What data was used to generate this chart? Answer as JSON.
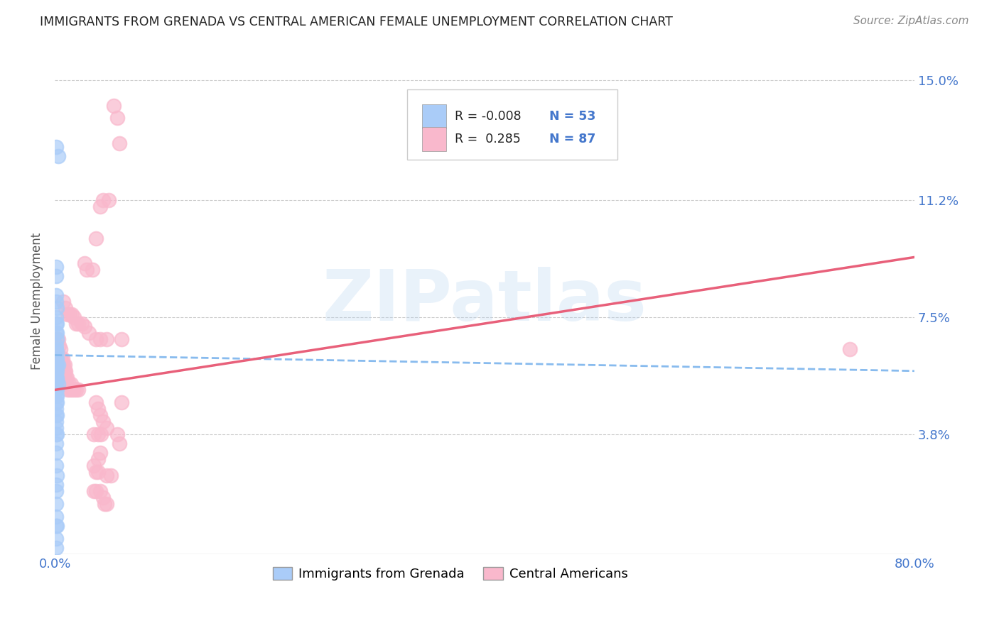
{
  "title": "IMMIGRANTS FROM GRENADA VS CENTRAL AMERICAN FEMALE UNEMPLOYMENT CORRELATION CHART",
  "source": "Source: ZipAtlas.com",
  "ylabel": "Female Unemployment",
  "yticks": [
    3.8,
    7.5,
    11.2,
    15.0
  ],
  "xlim": [
    0.0,
    0.8
  ],
  "ylim": [
    0.0,
    0.16
  ],
  "watermark": "ZIPatlas",
  "legend_blue_r": "-0.008",
  "legend_blue_n": "53",
  "legend_pink_r": "0.285",
  "legend_pink_n": "87",
  "blue_color": "#aaccf8",
  "pink_color": "#f9b8cc",
  "blue_line_color": "#88bbee",
  "pink_line_color": "#e8607a",
  "title_color": "#222222",
  "axis_label_color": "#4477cc",
  "background_color": "#ffffff",
  "blue_trend": [
    0.063,
    0.058
  ],
  "pink_trend": [
    0.052,
    0.094
  ],
  "blue_points": [
    [
      0.001,
      0.129
    ],
    [
      0.003,
      0.126
    ],
    [
      0.001,
      0.091
    ],
    [
      0.001,
      0.088
    ],
    [
      0.001,
      0.082
    ],
    [
      0.001,
      0.08
    ],
    [
      0.002,
      0.078
    ],
    [
      0.001,
      0.075
    ],
    [
      0.001,
      0.073
    ],
    [
      0.002,
      0.073
    ],
    [
      0.001,
      0.07
    ],
    [
      0.002,
      0.07
    ],
    [
      0.002,
      0.068
    ],
    [
      0.001,
      0.066
    ],
    [
      0.001,
      0.065
    ],
    [
      0.002,
      0.064
    ],
    [
      0.001,
      0.062
    ],
    [
      0.002,
      0.062
    ],
    [
      0.001,
      0.06
    ],
    [
      0.002,
      0.06
    ],
    [
      0.003,
      0.06
    ],
    [
      0.001,
      0.058
    ],
    [
      0.002,
      0.058
    ],
    [
      0.001,
      0.056
    ],
    [
      0.002,
      0.056
    ],
    [
      0.001,
      0.055
    ],
    [
      0.002,
      0.055
    ],
    [
      0.003,
      0.054
    ],
    [
      0.001,
      0.052
    ],
    [
      0.002,
      0.052
    ],
    [
      0.001,
      0.05
    ],
    [
      0.002,
      0.05
    ],
    [
      0.001,
      0.048
    ],
    [
      0.002,
      0.048
    ],
    [
      0.001,
      0.046
    ],
    [
      0.001,
      0.044
    ],
    [
      0.002,
      0.044
    ],
    [
      0.001,
      0.042
    ],
    [
      0.001,
      0.04
    ],
    [
      0.001,
      0.038
    ],
    [
      0.002,
      0.038
    ],
    [
      0.001,
      0.035
    ],
    [
      0.001,
      0.032
    ],
    [
      0.001,
      0.028
    ],
    [
      0.002,
      0.025
    ],
    [
      0.001,
      0.022
    ],
    [
      0.001,
      0.02
    ],
    [
      0.001,
      0.016
    ],
    [
      0.001,
      0.012
    ],
    [
      0.001,
      0.009
    ],
    [
      0.002,
      0.009
    ],
    [
      0.001,
      0.005
    ],
    [
      0.001,
      0.002
    ]
  ],
  "pink_points": [
    [
      0.002,
      0.068
    ],
    [
      0.003,
      0.068
    ],
    [
      0.004,
      0.066
    ],
    [
      0.005,
      0.065
    ],
    [
      0.003,
      0.062
    ],
    [
      0.004,
      0.062
    ],
    [
      0.005,
      0.062
    ],
    [
      0.006,
      0.062
    ],
    [
      0.007,
      0.062
    ],
    [
      0.005,
      0.06
    ],
    [
      0.007,
      0.06
    ],
    [
      0.008,
      0.06
    ],
    [
      0.009,
      0.06
    ],
    [
      0.005,
      0.058
    ],
    [
      0.006,
      0.058
    ],
    [
      0.007,
      0.058
    ],
    [
      0.008,
      0.058
    ],
    [
      0.009,
      0.058
    ],
    [
      0.01,
      0.058
    ],
    [
      0.004,
      0.056
    ],
    [
      0.006,
      0.056
    ],
    [
      0.007,
      0.056
    ],
    [
      0.008,
      0.056
    ],
    [
      0.01,
      0.056
    ],
    [
      0.011,
      0.056
    ],
    [
      0.005,
      0.054
    ],
    [
      0.007,
      0.054
    ],
    [
      0.008,
      0.054
    ],
    [
      0.01,
      0.054
    ],
    [
      0.013,
      0.054
    ],
    [
      0.015,
      0.054
    ],
    [
      0.012,
      0.052
    ],
    [
      0.014,
      0.052
    ],
    [
      0.016,
      0.052
    ],
    [
      0.018,
      0.052
    ],
    [
      0.02,
      0.052
    ],
    [
      0.022,
      0.052
    ],
    [
      0.008,
      0.08
    ],
    [
      0.01,
      0.078
    ],
    [
      0.012,
      0.076
    ],
    [
      0.014,
      0.076
    ],
    [
      0.016,
      0.076
    ],
    [
      0.018,
      0.075
    ],
    [
      0.02,
      0.073
    ],
    [
      0.022,
      0.073
    ],
    [
      0.025,
      0.073
    ],
    [
      0.028,
      0.072
    ],
    [
      0.032,
      0.07
    ],
    [
      0.038,
      0.068
    ],
    [
      0.042,
      0.068
    ],
    [
      0.048,
      0.068
    ],
    [
      0.028,
      0.092
    ],
    [
      0.03,
      0.09
    ],
    [
      0.035,
      0.09
    ],
    [
      0.038,
      0.1
    ],
    [
      0.042,
      0.11
    ],
    [
      0.045,
      0.112
    ],
    [
      0.05,
      0.112
    ],
    [
      0.055,
      0.142
    ],
    [
      0.058,
      0.138
    ],
    [
      0.06,
      0.13
    ],
    [
      0.038,
      0.048
    ],
    [
      0.04,
      0.046
    ],
    [
      0.042,
      0.044
    ],
    [
      0.045,
      0.042
    ],
    [
      0.048,
      0.04
    ],
    [
      0.04,
      0.03
    ],
    [
      0.042,
      0.032
    ],
    [
      0.036,
      0.028
    ],
    [
      0.038,
      0.026
    ],
    [
      0.04,
      0.026
    ],
    [
      0.048,
      0.025
    ],
    [
      0.052,
      0.025
    ],
    [
      0.036,
      0.02
    ],
    [
      0.038,
      0.02
    ],
    [
      0.042,
      0.02
    ],
    [
      0.045,
      0.018
    ],
    [
      0.046,
      0.016
    ],
    [
      0.048,
      0.016
    ],
    [
      0.036,
      0.038
    ],
    [
      0.04,
      0.038
    ],
    [
      0.043,
      0.038
    ],
    [
      0.058,
      0.038
    ],
    [
      0.06,
      0.035
    ],
    [
      0.062,
      0.048
    ],
    [
      0.062,
      0.068
    ],
    [
      0.74,
      0.065
    ]
  ]
}
